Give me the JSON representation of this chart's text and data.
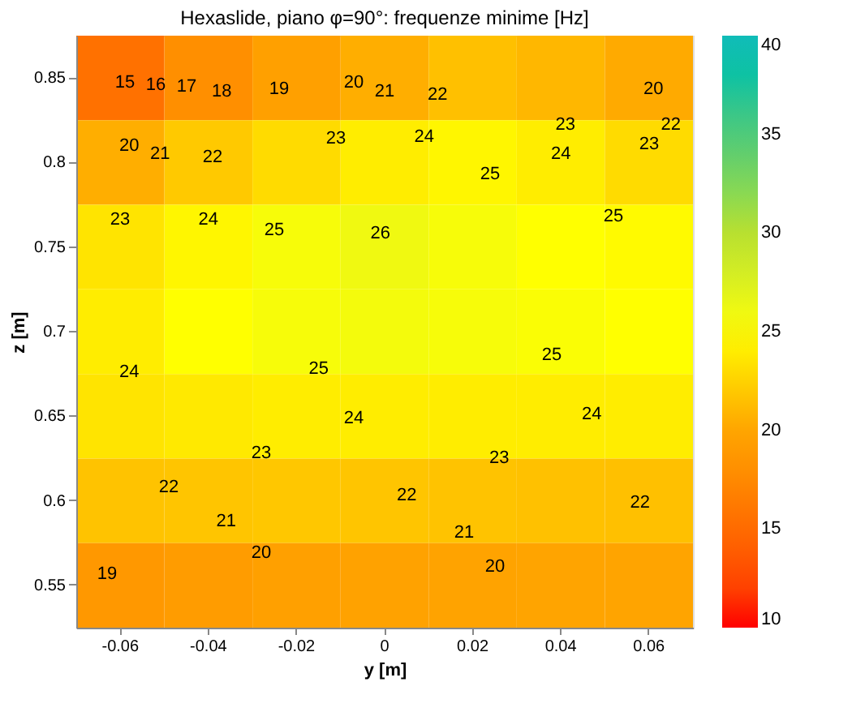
{
  "chart_data": {
    "type": "heatmap",
    "title": "Hexaslide, piano φ=90°: frequenze minime [Hz]",
    "xlabel": "y [m]",
    "ylabel": "z [m]",
    "categories": [
      "-0.06",
      "-0.04",
      "-0.02",
      "0",
      "0.02",
      "0.04",
      "0.06"
    ],
    "y_categories": [
      "0.85",
      "0.8",
      "0.75",
      "0.7",
      "0.65",
      "0.6",
      "0.55"
    ],
    "cells": [
      [
        15.5,
        18,
        19.5,
        20.5,
        21.5,
        21,
        20.3
      ],
      [
        20.5,
        22,
        23,
        24,
        24.5,
        24,
        23
      ],
      [
        23.5,
        24.5,
        25.5,
        26,
        25.5,
        25,
        24.7
      ],
      [
        24,
        25,
        25.5,
        25.7,
        25.5,
        25.3,
        25
      ],
      [
        23.5,
        23.8,
        24,
        24,
        24,
        24,
        24
      ],
      [
        21.7,
        21.8,
        21.9,
        21.8,
        21.7,
        21.6,
        21.5
      ],
      [
        18.8,
        19.2,
        19.5,
        19.7,
        19.8,
        19.9,
        19.9
      ]
    ],
    "clim": [
      10,
      40
    ],
    "cticks": [
      10,
      15,
      20,
      25,
      30,
      35,
      40
    ],
    "annotations": [
      "15",
      "16",
      "17",
      "18",
      "19",
      "20",
      "21",
      "22",
      "20",
      "22",
      "23",
      "23",
      "24",
      "24",
      "23",
      "22",
      "21",
      "20",
      "25",
      "25",
      "23",
      "24",
      "25",
      "26",
      "24",
      "25",
      "25",
      "24",
      "24",
      "23",
      "23",
      "22",
      "22",
      "22",
      "21",
      "21",
      "20",
      "20",
      "19"
    ]
  }
}
